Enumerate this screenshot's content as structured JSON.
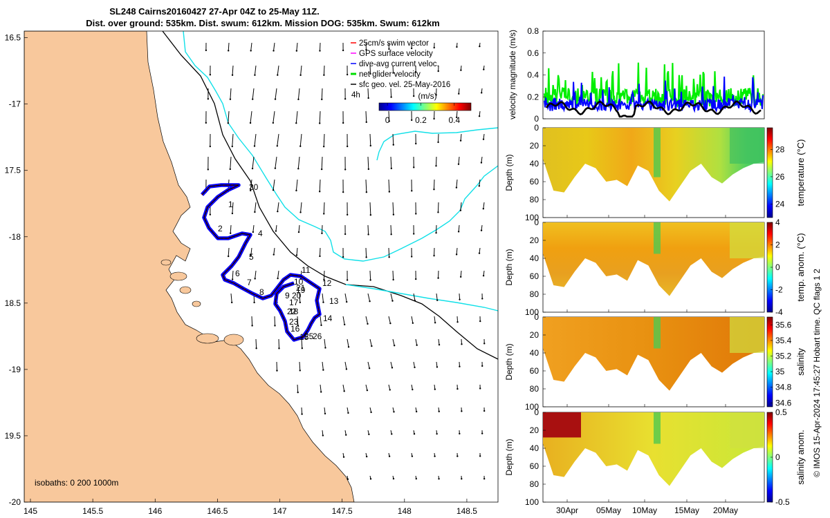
{
  "title": {
    "line1": "SL248 Cairns20160427 27-Apr 04Z to 25-May 11Z.",
    "line2": "Dist. over ground: 535km. Dist. swum: 612km. Mission DOG: 535km. Swum: 612km"
  },
  "map": {
    "lon_ticks": [
      "145",
      "145.5",
      "146",
      "146.5",
      "147",
      "147.5",
      "148",
      "148.5"
    ],
    "lat_ticks": [
      "16.5",
      "-17",
      "17.5",
      "-18",
      "18.5",
      "-19",
      "19.5",
      "-20"
    ],
    "xlim": [
      144.95,
      148.75
    ],
    "ylim": [
      -20.0,
      -16.45
    ],
    "legend": [
      {
        "label": "25cm/s swim vector",
        "color": "#ff0000"
      },
      {
        "label": "GPS surface velocity",
        "color": "#ff00ff"
      },
      {
        "label": "dive-avg current veloc.",
        "color": "#0000ff"
      },
      {
        "label": "net glider velocity",
        "color": "#00dd00"
      },
      {
        "label": "sfc geo. vel. 25-May-2016",
        "color": "#000000"
      }
    ],
    "legend_note": "4h",
    "colorbar": {
      "label": "(m/s)",
      "ticks": [
        "0",
        "0.2",
        "0.4"
      ],
      "range": [
        -0.05,
        0.5
      ]
    },
    "isobaths_label": "isobaths: 0   200   1000m",
    "waypoints": [
      "1",
      "2",
      "4",
      "5",
      "6",
      "7",
      "8",
      "9",
      "10",
      "11",
      "12",
      "13",
      "14",
      "15",
      "16",
      "17",
      "18",
      "19",
      "20",
      "21",
      "22",
      "23",
      "25",
      "26",
      "30"
    ],
    "land_color": "#f8c89c",
    "isobath_200_color": "#000000",
    "isobath_1000_color": "#10e0e8"
  },
  "timeseries": {
    "ylabel": "velocity magnitude (m/s)",
    "yticks": [
      "0",
      "0.2",
      "0.4",
      "0.6",
      "0.8"
    ],
    "ylim": [
      0,
      0.8
    ],
    "series": [
      {
        "name": "net glider velocity",
        "color": "#00ee00"
      },
      {
        "name": "dive-avg current",
        "color": "#0000ff"
      },
      {
        "name": "sfc geo. vel.",
        "color": "#000000"
      }
    ]
  },
  "sections": [
    {
      "ylabel": "Depth (m)",
      "cbar_label": "temperature (°C)",
      "cbar_ticks": [
        "28",
        "26",
        "24"
      ],
      "clim": [
        23,
        29.6
      ]
    },
    {
      "ylabel": "Depth (m)",
      "cbar_label": "temp. anom. (°C)",
      "cbar_ticks": [
        "4",
        "2",
        "0",
        "-2",
        "-4"
      ],
      "clim": [
        -4,
        4
      ]
    },
    {
      "ylabel": "Depth (m)",
      "cbar_label": "salinity",
      "cbar_ticks": [
        "35.6",
        "35.4",
        "35.2",
        "35",
        "34.8",
        "34.6"
      ],
      "clim": [
        34.55,
        35.7
      ]
    },
    {
      "ylabel": "Depth (m)",
      "cbar_label": "salinity anom.",
      "cbar_ticks": [
        "0.5",
        "0",
        "-0.5"
      ],
      "clim": [
        -0.5,
        0.5
      ]
    }
  ],
  "depth_ticks": [
    "0",
    "20",
    "40",
    "60",
    "80",
    "100"
  ],
  "date_ticks": [
    "30Apr",
    "05May",
    "10May",
    "15May",
    "20May"
  ],
  "side_note": "© IMOS 15-Apr-2024 17:45:27 Hobart time. QC flags 1  2"
}
